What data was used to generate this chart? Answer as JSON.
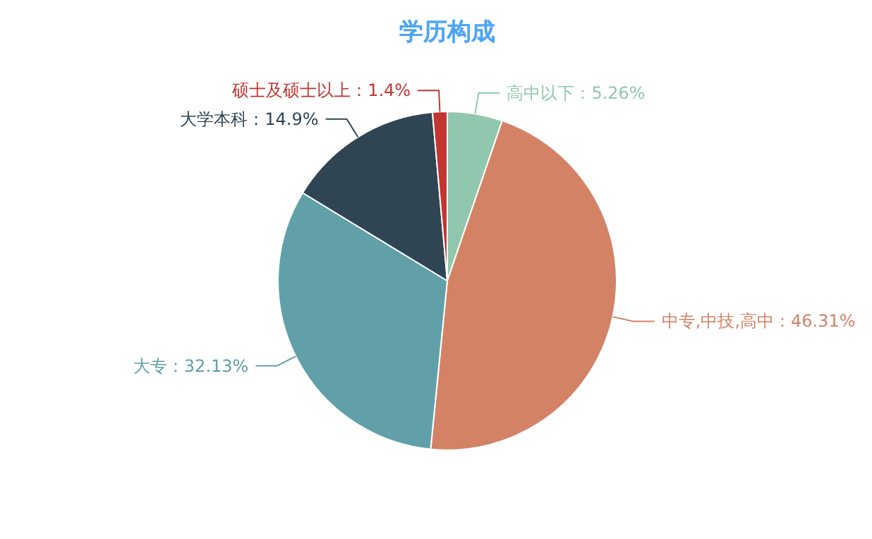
{
  "chart_data": {
    "type": "pie",
    "title": "学历构成",
    "categories": [
      "高中以下",
      "中专,中技,高中",
      "大专",
      "大学本科",
      "硕士及硕士以上"
    ],
    "values": [
      5.26,
      46.31,
      32.13,
      14.9,
      1.4
    ],
    "value_labels": [
      "5.26%",
      "46.31%",
      "32.13%",
      "14.9%",
      "1.4%"
    ],
    "colors": [
      "#91c7ae",
      "#d48265",
      "#61a0a8",
      "#2f4554",
      "#c23531"
    ]
  }
}
